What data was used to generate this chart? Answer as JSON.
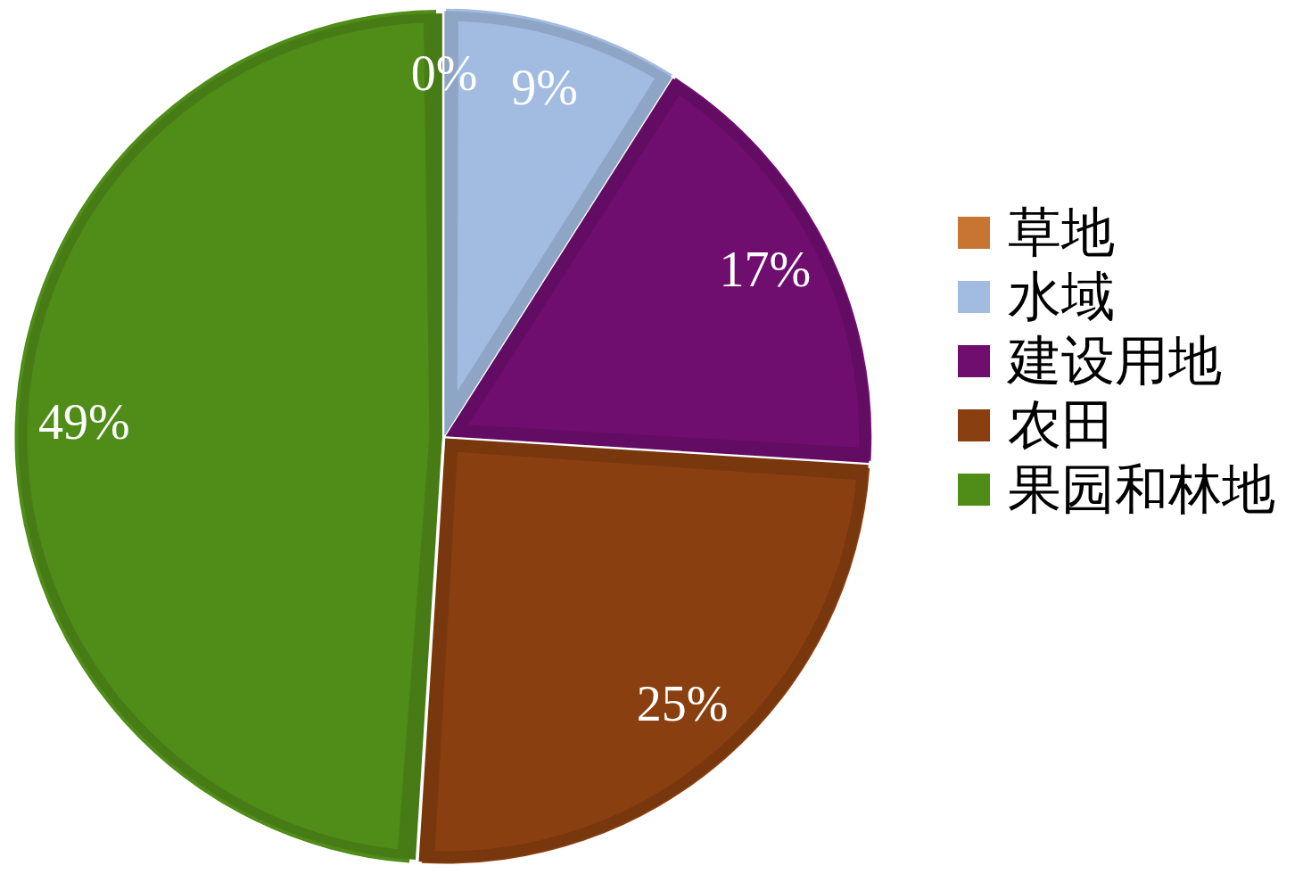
{
  "chart_data": {
    "type": "pie",
    "categories": [
      "草地",
      "水域",
      "建设用地",
      "农田",
      "果园和林地"
    ],
    "values": [
      0,
      9,
      17,
      25,
      49
    ],
    "colors": [
      "#c87533",
      "#a2bbe0",
      "#700e70",
      "#8a3f10",
      "#4f8c18"
    ],
    "value_labels": [
      "0%",
      "9%",
      "17%",
      "25%",
      "49%"
    ],
    "legend": "right"
  }
}
